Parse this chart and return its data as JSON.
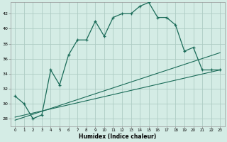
{
  "xlabel": "Humidex (Indice chaleur)",
  "ylabel": "",
  "background_color": "#d4ece5",
  "grid_color": "#aeccc4",
  "line_color": "#1a6b58",
  "xlim": [
    -0.5,
    23.5
  ],
  "ylim": [
    27,
    43.5
  ],
  "yticks": [
    28,
    30,
    32,
    34,
    36,
    38,
    40,
    42
  ],
  "xticks": [
    0,
    1,
    2,
    3,
    4,
    5,
    6,
    7,
    8,
    9,
    10,
    11,
    12,
    13,
    14,
    15,
    16,
    17,
    18,
    19,
    20,
    21,
    22,
    23
  ],
  "main_x": [
    0,
    1,
    2,
    3,
    4,
    5,
    6,
    7,
    8,
    9,
    10,
    11,
    12,
    13,
    14,
    15,
    16,
    17,
    18,
    19,
    20,
    21,
    22,
    23
  ],
  "main_y": [
    31,
    30,
    28,
    28.5,
    34.5,
    32.5,
    36.5,
    38.5,
    38.5,
    41,
    39,
    41.5,
    42,
    42,
    43,
    43.5,
    41.5,
    41.5,
    40.5,
    37,
    37.5,
    34.5,
    34.5,
    34.5
  ],
  "line1_x": [
    0,
    23
  ],
  "line1_y": [
    28.2,
    34.5
  ],
  "line2_x": [
    0,
    23
  ],
  "line2_y": [
    27.8,
    36.8
  ]
}
